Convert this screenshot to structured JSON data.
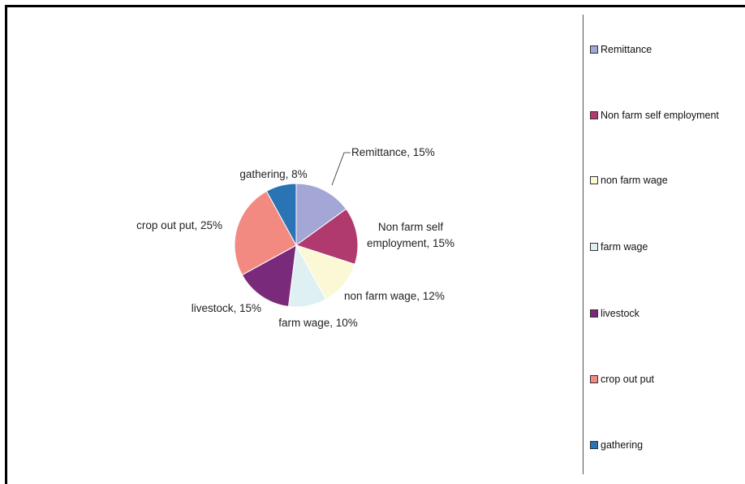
{
  "chart_data": {
    "type": "pie",
    "title": "",
    "slices": [
      {
        "label": "Remittance",
        "value": 15,
        "color": "#a4a6d6",
        "data_label": "Remittance, 15%"
      },
      {
        "label": "Non farm self employment",
        "value": 15,
        "color": "#b03a6e",
        "data_label_lines": [
          "Non farm self",
          "employment, 15%"
        ]
      },
      {
        "label": "non farm wage",
        "value": 12,
        "color": "#fbf8d6",
        "data_label": "non farm wage, 12%"
      },
      {
        "label": "farm wage",
        "value": 10,
        "color": "#dff0f2",
        "data_label": "farm wage, 10%"
      },
      {
        "label": "livestock",
        "value": 15,
        "color": "#7a2a7a",
        "data_label": "livestock, 15%"
      },
      {
        "label": "crop out put",
        "value": 25,
        "color": "#f28a82",
        "data_label": "crop out put, 25%"
      },
      {
        "label": "gathering",
        "value": 8,
        "color": "#2a73b4",
        "data_label": "gathering, 8%"
      }
    ],
    "legend_position": "right"
  }
}
